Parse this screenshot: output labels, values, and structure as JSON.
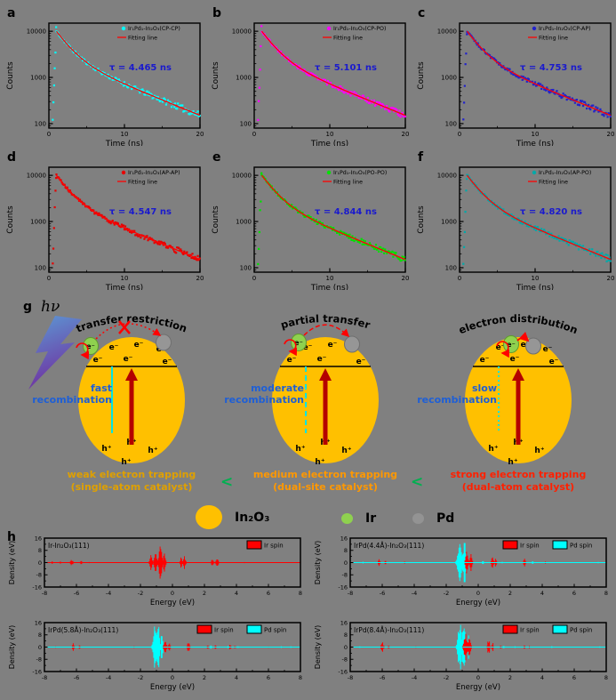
{
  "figure": {
    "background": "#808080"
  },
  "chart_data": {
    "decay": {
      "type": "scatter",
      "xlabel": "Time (ns)",
      "ylabel": "Counts",
      "xlim": [
        0,
        20
      ],
      "xticks": [
        0,
        10,
        20
      ],
      "yscale": "log",
      "yticks": [
        100,
        1000,
        10000
      ],
      "fit_label": "Fitting line",
      "fit_color": "#ff0000",
      "tau_color": "#1a1acd",
      "panels": [
        {
          "label": "a",
          "sample": "Ir₁Pd₁-In₂O₃(CP-CP)",
          "color": "#00ffff",
          "tau_ns": 4.465,
          "tau_text": "τ = 4.465 ns"
        },
        {
          "label": "b",
          "sample": "Ir₁Pd₁-In₂O₃(CP-PO)",
          "color": "#ff00ff",
          "tau_ns": 5.101,
          "tau_text": "τ = 5.101 ns"
        },
        {
          "label": "c",
          "sample": "Ir₁Pd₁-In₂O₃(CP-AP)",
          "color": "#2222cc",
          "tau_ns": 4.753,
          "tau_text": "τ = 4.753 ns"
        },
        {
          "label": "d",
          "sample": "Ir₁Pd₁-In₂O₃(AP-AP)",
          "color": "#e60000",
          "tau_ns": 4.547,
          "tau_text": "τ = 4.547 ns"
        },
        {
          "label": "e",
          "sample": "Ir₁Pd₁-In₂O₃(PO-PO)",
          "color": "#00e100",
          "tau_ns": 4.844,
          "tau_text": "τ = 4.844 ns"
        },
        {
          "label": "f",
          "sample": "Ir₁Pd₁-In₂O₃(AP-PO)",
          "color": "#00a9a9",
          "tau_ns": 4.82,
          "tau_text": "τ = 4.820 ns"
        }
      ]
    },
    "dos": {
      "type": "area",
      "label": "h",
      "xlabel": "Energy (eV)",
      "ylabel": "Density (eV)",
      "xlim": [
        -8,
        8
      ],
      "ylim": [
        -16,
        16
      ],
      "xticks": [
        -8,
        -6,
        -4,
        -2,
        0,
        2,
        4,
        6,
        8
      ],
      "yticks": [
        -16,
        -8,
        0,
        8,
        16
      ],
      "series_colors": {
        "Ir": "#ff0000",
        "Pd": "#00ffff"
      },
      "panels": [
        {
          "title": "Ir-In₂O₃(111)",
          "legend": [
            {
              "name": "Ir spin",
              "color": "#ff0000"
            }
          ],
          "peaks": {
            "Ir": [
              [
                -7.5,
                0.8,
                0.12
              ],
              [
                -7.0,
                0.6,
                0.1
              ],
              [
                -6.3,
                1.6,
                0.18
              ],
              [
                -5.7,
                0.9,
                0.12
              ],
              [
                -5.2,
                0.5,
                0.1
              ],
              [
                -1.35,
                4.5,
                0.15
              ],
              [
                -1.05,
                6.5,
                0.18
              ],
              [
                -0.75,
                8.5,
                0.22
              ],
              [
                -0.5,
                5,
                0.15
              ],
              [
                0.55,
                3,
                0.12
              ],
              [
                0.75,
                3.5,
                0.15
              ],
              [
                2.5,
                1.8,
                0.15
              ],
              [
                2.8,
                2.2,
                0.18
              ],
              [
                4.5,
                0.4,
                0.1
              ],
              [
                6.5,
                0.3,
                0.1
              ]
            ]
          }
        },
        {
          "title": "IrPd(4.4Å)-In₂O₃(111)",
          "legend": [
            {
              "name": "Ir spin",
              "color": "#ff0000"
            },
            {
              "name": "Pd spin",
              "color": "#00ffff"
            }
          ],
          "peaks": {
            "Ir": [
              [
                -6.2,
                1.8,
                0.15
              ],
              [
                -5.8,
                1.2,
                0.12
              ],
              [
                -4.6,
                0.5,
                0.1
              ],
              [
                -0.7,
                6,
                0.18
              ],
              [
                -0.45,
                4.5,
                0.15
              ],
              [
                0.9,
                3.2,
                0.15
              ],
              [
                1.1,
                2.2,
                0.12
              ],
              [
                2.9,
                2.0,
                0.15
              ],
              [
                4.2,
                0.5,
                0.1
              ]
            ],
            "Pd": [
              [
                -7.2,
                0.5,
                0.1
              ],
              [
                -1.15,
                9.5,
                0.3
              ],
              [
                -0.85,
                10.5,
                0.28
              ],
              [
                0.3,
                1.2,
                0.1
              ],
              [
                1.5,
                0.6,
                0.1
              ],
              [
                3.4,
                0.8,
                0.1
              ],
              [
                5.5,
                0.4,
                0.1
              ],
              [
                7.5,
                0.5,
                0.1
              ]
            ]
          }
        },
        {
          "title": "IrPd(5.8Å)-In₂O₃(111)",
          "legend": [
            {
              "name": "Ir spin",
              "color": "#ff0000"
            },
            {
              "name": "Pd spin",
              "color": "#00ffff"
            }
          ],
          "peaks": {
            "Ir": [
              [
                -7.3,
                0.6,
                0.1
              ],
              [
                -6.2,
                1.9,
                0.15
              ],
              [
                -5.8,
                1.1,
                0.12
              ],
              [
                -2.4,
                0.5,
                0.1
              ],
              [
                -0.45,
                4.2,
                0.18
              ],
              [
                -0.2,
                2.8,
                0.12
              ],
              [
                1.0,
                3.3,
                0.15
              ],
              [
                2.2,
                1.2,
                0.12
              ],
              [
                2.7,
                1.3,
                0.12
              ],
              [
                3.6,
                1.6,
                0.12
              ],
              [
                3.9,
                1.0,
                0.1
              ],
              [
                6.0,
                0.4,
                0.1
              ]
            ],
            "Pd": [
              [
                -1.1,
                13.5,
                0.22
              ],
              [
                -0.9,
                14.5,
                0.2
              ],
              [
                -0.65,
                8,
                0.15
              ],
              [
                2.4,
                0.8,
                0.1
              ],
              [
                3.5,
                0.9,
                0.1
              ],
              [
                4.1,
                0.6,
                0.1
              ],
              [
                6.8,
                0.5,
                0.1
              ],
              [
                7.4,
                0.4,
                0.1
              ]
            ]
          }
        },
        {
          "title": "IrPd(8.4Å)-In₂O₃(111)",
          "legend": [
            {
              "name": "Ir spin",
              "color": "#ff0000"
            },
            {
              "name": "Pd spin",
              "color": "#00ffff"
            }
          ],
          "peaks": {
            "Ir": [
              [
                -6.0,
                2.8,
                0.18
              ],
              [
                -5.6,
                1.2,
                0.12
              ],
              [
                -3.9,
                0.6,
                0.1
              ],
              [
                -0.8,
                7.5,
                0.22
              ],
              [
                -0.55,
                5.5,
                0.18
              ],
              [
                0.65,
                4,
                0.15
              ],
              [
                0.9,
                2.5,
                0.12
              ],
              [
                1.4,
                1.2,
                0.1
              ],
              [
                2.9,
                1.0,
                0.12
              ],
              [
                3.2,
                0.8,
                0.1
              ]
            ],
            "Pd": [
              [
                -7.4,
                0.5,
                0.1
              ],
              [
                -1.15,
                13,
                0.25
              ],
              [
                -0.9,
                14.5,
                0.22
              ],
              [
                -0.6,
                6,
                0.15
              ],
              [
                1.6,
                0.8,
                0.1
              ],
              [
                2.3,
                0.6,
                0.1
              ],
              [
                4.6,
                0.5,
                0.1
              ],
              [
                6.9,
                0.4,
                0.1
              ],
              [
                7.6,
                0.5,
                0.1
              ]
            ]
          }
        }
      ]
    }
  },
  "mechanism": {
    "label": "g",
    "photon": "hν",
    "electron": "e⁻",
    "hole": "h⁺",
    "sphere_color": "#ffc000",
    "ir_color": "#8fd14f",
    "pd_color": "#969696",
    "arrow_color": "#b40000",
    "spheres": [
      {
        "arc_title": "transfer restriction",
        "recomb_line1": "fast",
        "recomb_line2": "recombination",
        "transfer": "blocked",
        "line_style": "solid"
      },
      {
        "arc_title": "partial transfer",
        "recomb_line1": "moderate",
        "recomb_line2": "recombination",
        "transfer": "partial",
        "line_style": "dashed"
      },
      {
        "arc_title": "electron distribution",
        "recomb_line1": "slow",
        "recomb_line2": "recombination",
        "transfer": "full",
        "line_style": "dotted"
      }
    ],
    "less_symbol": "<",
    "trapping": [
      {
        "line1": "weak electron trapping",
        "line2": "(single-atom catalyst)",
        "color": "#dfa000"
      },
      {
        "line1": "medium electron trapping",
        "line2": "(dual-site catalyst)",
        "color": "#ff9800"
      },
      {
        "line1": "strong electron trapping",
        "line2": "(dual-atom catalyst)",
        "color": "#ff2000"
      }
    ],
    "legend": [
      {
        "name": "In₂O₃",
        "color": "#ffc000",
        "size": "large"
      },
      {
        "name": "Ir",
        "color": "#8fd14f",
        "size": "small"
      },
      {
        "name": "Pd",
        "color": "#939393",
        "size": "small"
      }
    ]
  }
}
